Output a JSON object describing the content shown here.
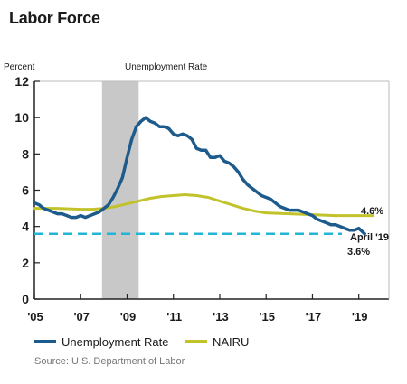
{
  "title": "Labor Force",
  "source": "Source: U.S. Department of Labor",
  "colors": {
    "unemployment": "#1d5b8c",
    "nairu": "#c2c22a",
    "current": "#23b4d6",
    "recession": "#c8c8c8",
    "axis": "#222222"
  },
  "chart_data": {
    "type": "line",
    "title": "Unemployment Rate",
    "ylabel": "Percent",
    "ylim": [
      0,
      12
    ],
    "xlim": [
      2005.0,
      2020.3
    ],
    "yticks": [
      0,
      2,
      4,
      6,
      8,
      10,
      12
    ],
    "xticks": [
      {
        "value": 2005,
        "label": "'05"
      },
      {
        "value": 2007,
        "label": "'07"
      },
      {
        "value": 2009,
        "label": "'09"
      },
      {
        "value": 2011,
        "label": "'11"
      },
      {
        "value": 2013,
        "label": "'13"
      },
      {
        "value": 2015,
        "label": "'15"
      },
      {
        "value": 2017,
        "label": "'17"
      },
      {
        "value": 2019,
        "label": "'19"
      }
    ],
    "recession": [
      2007.92,
      2009.5
    ],
    "series": [
      {
        "name": "Unemployment Rate",
        "x": [
          2005.0,
          2005.2,
          2005.4,
          2005.6,
          2005.8,
          2006.0,
          2006.2,
          2006.4,
          2006.6,
          2006.8,
          2007.0,
          2007.2,
          2007.4,
          2007.6,
          2007.8,
          2008.0,
          2008.2,
          2008.4,
          2008.6,
          2008.8,
          2009.0,
          2009.2,
          2009.4,
          2009.6,
          2009.8,
          2010.0,
          2010.2,
          2010.4,
          2010.6,
          2010.8,
          2011.0,
          2011.2,
          2011.4,
          2011.6,
          2011.8,
          2012.0,
          2012.2,
          2012.4,
          2012.6,
          2012.8,
          2013.0,
          2013.2,
          2013.4,
          2013.6,
          2013.8,
          2014.0,
          2014.2,
          2014.4,
          2014.6,
          2014.8,
          2015.0,
          2015.2,
          2015.4,
          2015.6,
          2015.8,
          2016.0,
          2016.2,
          2016.4,
          2016.6,
          2016.8,
          2017.0,
          2017.2,
          2017.4,
          2017.6,
          2017.8,
          2018.0,
          2018.2,
          2018.4,
          2018.6,
          2018.8,
          2019.0,
          2019.25
        ],
        "values": [
          5.3,
          5.2,
          5.0,
          4.9,
          4.8,
          4.7,
          4.7,
          4.6,
          4.5,
          4.5,
          4.6,
          4.5,
          4.6,
          4.7,
          4.8,
          5.0,
          5.2,
          5.6,
          6.1,
          6.7,
          7.8,
          8.8,
          9.5,
          9.8,
          10.0,
          9.8,
          9.7,
          9.5,
          9.5,
          9.4,
          9.1,
          9.0,
          9.1,
          9.0,
          8.8,
          8.3,
          8.2,
          8.2,
          7.8,
          7.8,
          7.9,
          7.6,
          7.5,
          7.3,
          7.0,
          6.6,
          6.3,
          6.1,
          5.9,
          5.7,
          5.6,
          5.5,
          5.3,
          5.1,
          5.0,
          4.9,
          4.9,
          4.9,
          4.8,
          4.7,
          4.6,
          4.4,
          4.3,
          4.2,
          4.1,
          4.1,
          4.0,
          3.9,
          3.8,
          3.8,
          3.9,
          3.6
        ]
      },
      {
        "name": "NAIRU",
        "x": [
          2005.0,
          2006.0,
          2007.0,
          2007.5,
          2008.0,
          2008.5,
          2009.0,
          2009.5,
          2010.0,
          2010.5,
          2011.0,
          2011.5,
          2012.0,
          2012.5,
          2013.0,
          2013.5,
          2014.0,
          2014.5,
          2015.0,
          2016.0,
          2017.0,
          2018.0,
          2019.0,
          2019.6
        ],
        "values": [
          5.0,
          5.0,
          4.95,
          4.95,
          5.0,
          5.1,
          5.25,
          5.4,
          5.55,
          5.65,
          5.7,
          5.75,
          5.7,
          5.6,
          5.4,
          5.2,
          5.0,
          4.85,
          4.75,
          4.7,
          4.65,
          4.6,
          4.6,
          4.6
        ]
      }
    ],
    "annotations": {
      "nairu_value": "4.6%",
      "current_label": "April '19",
      "current_value": "3.6%",
      "current_level": 3.6
    }
  },
  "legend": [
    {
      "label": "Unemployment Rate",
      "key": "unemployment"
    },
    {
      "label": "NAIRU",
      "key": "nairu"
    }
  ]
}
